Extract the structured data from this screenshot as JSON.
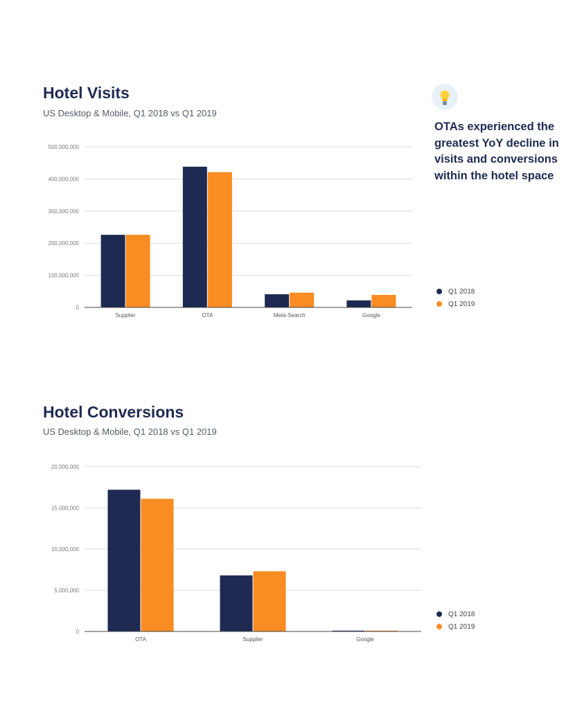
{
  "colors": {
    "q1_2018": "#1f2a52",
    "q1_2019": "#f98c22",
    "grid": "#dddddd",
    "axis": "#444444"
  },
  "insight": {
    "icon": "lightbulb-icon",
    "text": "OTAs experienced the greatest YoY decline in visits and conversions within the hotel space"
  },
  "chart_data": [
    {
      "type": "bar",
      "title": "Hotel Visits",
      "subtitle": "US Desktop & Mobile, Q1 2018 vs Q1 2019",
      "categories": [
        "Supplier",
        "OTA",
        "Meta-Search",
        "Google"
      ],
      "series": [
        {
          "name": "Q1 2018",
          "values": [
            226000000,
            438000000,
            41000000,
            22000000
          ]
        },
        {
          "name": "Q1 2019",
          "values": [
            226000000,
            421000000,
            46000000,
            39000000
          ]
        }
      ],
      "ylim": [
        0,
        500000000
      ],
      "yticks": [
        0,
        100000000,
        200000000,
        300000000,
        400000000,
        500000000
      ],
      "ytick_labels": [
        "0",
        "100,000,000",
        "200,000,000",
        "300,000,000",
        "400,000,000",
        "500,000,000"
      ],
      "grid": true,
      "legend": "right"
    },
    {
      "type": "bar",
      "title": "Hotel Conversions",
      "subtitle": "US Desktop & Mobile, Q1 2018 vs Q1 2019",
      "categories": [
        "OTA",
        "Supplier",
        "Google"
      ],
      "series": [
        {
          "name": "Q1 2018",
          "values": [
            17200000,
            6800000,
            100000
          ]
        },
        {
          "name": "Q1 2019",
          "values": [
            16100000,
            7300000,
            100000
          ]
        }
      ],
      "ylim": [
        0,
        20000000
      ],
      "yticks": [
        0,
        5000000,
        10000000,
        15000000,
        20000000
      ],
      "ytick_labels": [
        "0",
        "5,000,000",
        "10,000,000",
        "15,000,000",
        "20,000,000"
      ],
      "grid": true,
      "legend": "right"
    }
  ]
}
